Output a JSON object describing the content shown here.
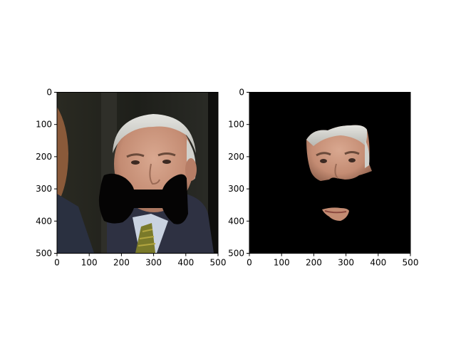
{
  "chart_data": [
    {
      "type": "image",
      "panel": "left",
      "content": "face photo with black bowtie-shaped occlusion over mouth",
      "xlim": [
        0,
        500
      ],
      "ylim": [
        500,
        0
      ],
      "xticks": [
        "0",
        "100",
        "200",
        "300",
        "400",
        "500"
      ],
      "yticks": [
        "0",
        "100",
        "200",
        "300",
        "400",
        "500"
      ]
    },
    {
      "type": "image",
      "panel": "right",
      "content": "segmented face region on black background",
      "xlim": [
        0,
        500
      ],
      "ylim": [
        500,
        0
      ],
      "xticks": [
        "0",
        "100",
        "200",
        "300",
        "400",
        "500"
      ],
      "yticks": [
        "0",
        "100",
        "200",
        "300",
        "400",
        "500"
      ]
    }
  ],
  "colors": {
    "background": "#ffffff",
    "axis": "#000000",
    "mask": "#000000"
  }
}
